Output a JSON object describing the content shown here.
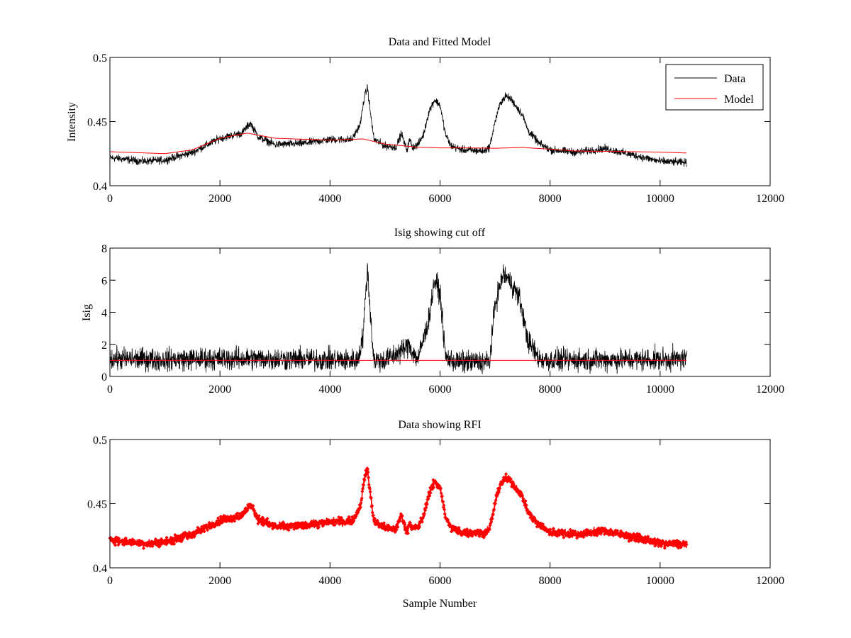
{
  "chart_data": [
    {
      "id": "top",
      "type": "line",
      "title": "Data and Fitted Model",
      "xlabel": "",
      "ylabel": "Intensity",
      "xlim": [
        0,
        12000
      ],
      "ylim": [
        0.4,
        0.5
      ],
      "xticks": [
        "0",
        "2000",
        "4000",
        "6000",
        "8000",
        "10000",
        "12000"
      ],
      "yticks": [
        "0.4",
        "0.45",
        "0.5"
      ],
      "legend": {
        "placement": "top-right",
        "entries": [
          "Data",
          "Model"
        ]
      },
      "series": [
        {
          "name": "Data",
          "color": "#000000",
          "style": "noisy-line",
          "noise": 0.0045,
          "n_samples": 10500,
          "x": [
            0,
            600,
            1000,
            1500,
            2000,
            2400,
            2550,
            2700,
            3000,
            3500,
            4000,
            4400,
            4550,
            4620,
            4680,
            4740,
            4800,
            5000,
            5200,
            5300,
            5350,
            5400,
            5450,
            5500,
            5600,
            5700,
            5800,
            5900,
            6000,
            6100,
            6200,
            6400,
            6800,
            6900,
            7000,
            7100,
            7200,
            7300,
            7400,
            7500,
            7600,
            7800,
            8000,
            8500,
            8800,
            9000,
            9500,
            10000,
            10480
          ],
          "values": [
            0.422,
            0.419,
            0.42,
            0.426,
            0.437,
            0.441,
            0.449,
            0.438,
            0.432,
            0.433,
            0.436,
            0.436,
            0.448,
            0.468,
            0.477,
            0.455,
            0.436,
            0.431,
            0.43,
            0.441,
            0.433,
            0.428,
            0.436,
            0.43,
            0.432,
            0.44,
            0.458,
            0.467,
            0.463,
            0.44,
            0.431,
            0.428,
            0.427,
            0.43,
            0.45,
            0.465,
            0.47,
            0.467,
            0.461,
            0.455,
            0.443,
            0.433,
            0.428,
            0.426,
            0.428,
            0.429,
            0.424,
            0.419,
            0.418
          ]
        },
        {
          "name": "Model",
          "color": "#ff0000",
          "style": "line",
          "x": [
            0,
            1000,
            1500,
            2000,
            2500,
            3000,
            4000,
            4600,
            5000,
            5600,
            6000,
            6500,
            7000,
            7500,
            8000,
            8500,
            9000,
            10000,
            10480
          ],
          "values": [
            0.4265,
            0.425,
            0.428,
            0.437,
            0.441,
            0.437,
            0.4355,
            0.4365,
            0.4325,
            0.43,
            0.4295,
            0.4295,
            0.4292,
            0.4298,
            0.4285,
            0.427,
            0.4268,
            0.4262,
            0.4255
          ]
        }
      ]
    },
    {
      "id": "middle",
      "type": "line",
      "title": "Isig showing cut off",
      "xlabel": "",
      "ylabel": "Isig",
      "xlim": [
        0,
        12000
      ],
      "ylim": [
        0,
        8
      ],
      "xticks": [
        "0",
        "2000",
        "4000",
        "6000",
        "8000",
        "10000",
        "12000"
      ],
      "yticks": [
        "0",
        "2",
        "4",
        "6",
        "8"
      ],
      "series": [
        {
          "name": "Isig",
          "color": "#000000",
          "style": "noisy-line",
          "noise": 0.8,
          "n_samples": 10500,
          "x": [
            0,
            1000,
            2000,
            3000,
            4000,
            4500,
            4600,
            4680,
            4760,
            4800,
            5000,
            5300,
            5450,
            5500,
            5600,
            5800,
            5900,
            6000,
            6100,
            6300,
            6900,
            7000,
            7150,
            7300,
            7450,
            7600,
            7800,
            8000,
            9000,
            10000,
            10480
          ],
          "values": [
            1.1,
            1.05,
            1.1,
            1.1,
            1.05,
            1.0,
            2.5,
            6.8,
            2.6,
            1.0,
            1.0,
            1.6,
            2.0,
            1.5,
            1.1,
            3.6,
            6.0,
            5.2,
            1.2,
            0.9,
            0.9,
            4.5,
            6.4,
            5.8,
            4.8,
            2.2,
            1.1,
            1.0,
            1.05,
            1.05,
            1.1
          ]
        },
        {
          "name": "Cut off",
          "color": "#ff0000",
          "style": "line",
          "x": [
            0,
            10480
          ],
          "values": [
            1.0,
            1.0
          ]
        }
      ]
    },
    {
      "id": "bottom",
      "type": "scatter",
      "title": "Data showing RFI",
      "xlabel": "Sample Number",
      "ylabel": "",
      "xlim": [
        0,
        12000
      ],
      "ylim": [
        0.4,
        0.5
      ],
      "xticks": [
        "0",
        "2000",
        "4000",
        "6000",
        "8000",
        "10000",
        "12000"
      ],
      "yticks": [
        "0.4",
        "0.45",
        "0.5"
      ],
      "series": [
        {
          "name": "RFI",
          "color": "#ff0000",
          "style": "noisy-markers",
          "noise": 0.0045,
          "n_samples": 10500,
          "x": [
            0,
            600,
            1000,
            1500,
            2000,
            2400,
            2550,
            2700,
            3000,
            3500,
            4000,
            4400,
            4550,
            4620,
            4680,
            4740,
            4800,
            5000,
            5200,
            5300,
            5350,
            5400,
            5450,
            5500,
            5600,
            5700,
            5800,
            5900,
            6000,
            6100,
            6200,
            6400,
            6800,
            6900,
            7000,
            7100,
            7200,
            7300,
            7400,
            7500,
            7600,
            7800,
            8000,
            8500,
            8800,
            9000,
            9500,
            10000,
            10480
          ],
          "values": [
            0.422,
            0.419,
            0.42,
            0.426,
            0.437,
            0.441,
            0.449,
            0.438,
            0.432,
            0.433,
            0.436,
            0.436,
            0.448,
            0.468,
            0.477,
            0.455,
            0.436,
            0.431,
            0.43,
            0.441,
            0.433,
            0.428,
            0.436,
            0.43,
            0.432,
            0.44,
            0.458,
            0.467,
            0.463,
            0.44,
            0.431,
            0.428,
            0.427,
            0.43,
            0.45,
            0.465,
            0.47,
            0.467,
            0.461,
            0.455,
            0.443,
            0.433,
            0.428,
            0.426,
            0.428,
            0.429,
            0.424,
            0.419,
            0.418
          ]
        }
      ]
    }
  ]
}
